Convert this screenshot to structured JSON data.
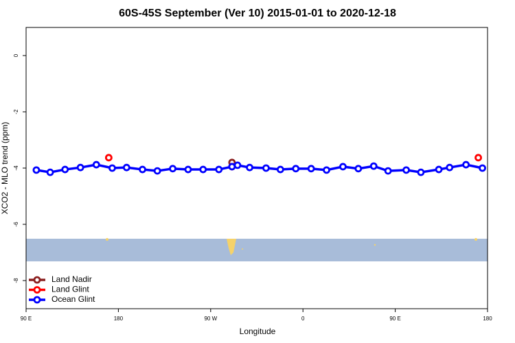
{
  "chart_data": {
    "type": "line",
    "title": "60S-45S September (Ver 10)   2015-01-01 to 2020-12-18",
    "x_label": "Longitude",
    "y_label": "XCO2 - MLO trend (ppm)",
    "xlim": [
      90,
      540
    ],
    "xticks": [
      {
        "value": 90,
        "label": "90 E"
      },
      {
        "value": 180,
        "label": "180"
      },
      {
        "value": 270,
        "label": "90 W"
      },
      {
        "value": 360,
        "label": "0"
      },
      {
        "value": 450,
        "label": "90 E"
      },
      {
        "value": 540,
        "label": "180"
      }
    ],
    "ylim": [
      -9,
      1
    ],
    "yticks": [
      0,
      -2,
      -4,
      -6,
      -8
    ],
    "legend": "bottom-left",
    "series": [
      {
        "name": "Land Nadir",
        "color": "#8b2020",
        "line": false,
        "x": [
          290.8
        ],
        "values": [
          -3.8
        ]
      },
      {
        "name": "Land Glint",
        "color": "#ff0000",
        "line": false,
        "x": [
          170.6,
          290.8,
          531
        ],
        "values": [
          -3.63,
          -3.95,
          -3.63
        ]
      },
      {
        "name": "Ocean Glint",
        "color": "#0000ff",
        "line": true,
        "x": [
          100,
          113.5,
          128,
          143,
          158.5,
          174,
          188,
          203.5,
          218,
          233,
          248,
          262.6,
          278,
          290.8,
          296.2,
          308,
          324,
          338,
          353,
          368,
          383,
          399,
          414,
          429,
          443,
          460.7,
          475,
          492.5,
          503,
          519,
          535
        ],
        "values": [
          -4.07,
          -4.15,
          -4.05,
          -3.98,
          -3.88,
          -4.0,
          -3.98,
          -4.05,
          -4.1,
          -4.02,
          -4.05,
          -4.05,
          -4.05,
          -3.95,
          -3.9,
          -3.98,
          -4.0,
          -4.05,
          -4.02,
          -4.02,
          -4.07,
          -3.95,
          -4.02,
          -3.93,
          -4.1,
          -4.07,
          -4.15,
          -4.05,
          -3.98,
          -3.88,
          -4.0
        ]
      }
    ]
  }
}
